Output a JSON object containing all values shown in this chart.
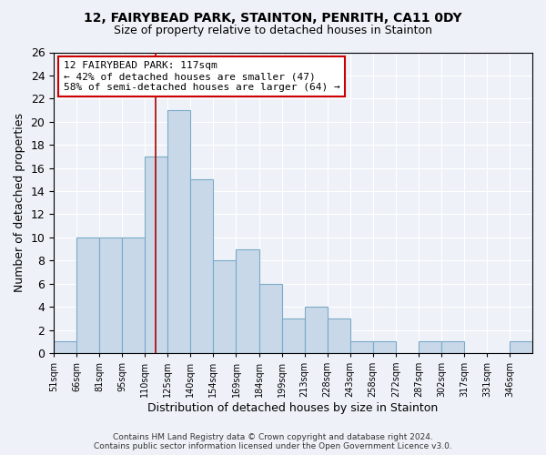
{
  "title1": "12, FAIRYBEAD PARK, STAINTON, PENRITH, CA11 0DY",
  "title2": "Size of property relative to detached houses in Stainton",
  "xlabel": "Distribution of detached houses by size in Stainton",
  "ylabel": "Number of detached properties",
  "bin_edges": [
    51,
    66,
    81,
    95,
    110,
    125,
    140,
    154,
    169,
    184,
    199,
    213,
    228,
    243,
    258,
    272,
    287,
    302,
    317,
    331,
    346
  ],
  "bar_heights": [
    1,
    10,
    10,
    10,
    17,
    21,
    15,
    8,
    9,
    6,
    3,
    4,
    3,
    1,
    1,
    0,
    1,
    1,
    0,
    0,
    1
  ],
  "bar_color": "#c8d8e8",
  "bar_edge_color": "#7aaac8",
  "property_size": 117,
  "vline_color": "#aa0000",
  "annotation_line1": "12 FAIRYBEAD PARK: 117sqm",
  "annotation_line2": "← 42% of detached houses are smaller (47)",
  "annotation_line3": "58% of semi-detached houses are larger (64) →",
  "annotation_box_color": "#ffffff",
  "annotation_box_edge_color": "#cc0000",
  "ylim": [
    0,
    26
  ],
  "yticks": [
    0,
    2,
    4,
    6,
    8,
    10,
    12,
    14,
    16,
    18,
    20,
    22,
    24,
    26
  ],
  "tick_labels": [
    "51sqm",
    "66sqm",
    "81sqm",
    "95sqm",
    "110sqm",
    "125sqm",
    "140sqm",
    "154sqm",
    "169sqm",
    "184sqm",
    "199sqm",
    "213sqm",
    "228sqm",
    "243sqm",
    "258sqm",
    "272sqm",
    "287sqm",
    "302sqm",
    "317sqm",
    "331sqm",
    "346sqm"
  ],
  "footer_text": "Contains HM Land Registry data © Crown copyright and database right 2024.\nContains public sector information licensed under the Open Government Licence v3.0.",
  "background_color": "#eef2f8",
  "plot_bg_color": "#eef2f8"
}
